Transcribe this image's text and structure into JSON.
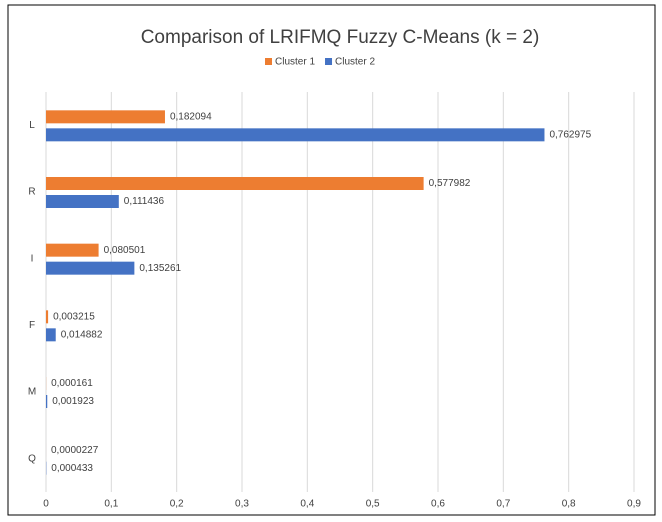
{
  "chart_data": {
    "type": "hbar",
    "title": "Comparison of LRIFMQ Fuzzy C-Means (k = 2)",
    "categories": [
      "L",
      "R",
      "I",
      "F",
      "M",
      "Q"
    ],
    "series": [
      {
        "name": "Cluster 1",
        "color": "#ed7d31",
        "values": [
          0.182094,
          0.577982,
          0.080501,
          0.003215,
          0.000161,
          2.27e-05
        ],
        "value_labels": [
          "0,182094",
          "0,577982",
          "0,080501",
          "0,003215",
          "0,000161",
          "0,0000227"
        ]
      },
      {
        "name": "Cluster 2",
        "color": "#4472c4",
        "values": [
          0.762975,
          0.111436,
          0.135261,
          0.014882,
          0.001923,
          0.000433
        ],
        "value_labels": [
          "0,762975",
          "0,111436",
          "0,135261",
          "0,014882",
          "0,001923",
          "0,000433"
        ]
      }
    ],
    "xlim": [
      0,
      0.9
    ],
    "xticks": [
      0,
      {
        "value": 0.1,
        "label": "0,1"
      },
      {
        "value": 0.2,
        "label": "0,2"
      },
      {
        "value": 0.3,
        "label": "0,3"
      },
      {
        "value": 0.4,
        "label": "0,4"
      },
      {
        "value": 0.5,
        "label": "0,5"
      },
      {
        "value": 0.6,
        "label": "0,6"
      },
      {
        "value": 0.7,
        "label": "0,7"
      },
      {
        "value": 0.8,
        "label": "0,8"
      },
      {
        "value": 0.9,
        "label": "0,9"
      }
    ],
    "grid": true,
    "legend": "top"
  }
}
